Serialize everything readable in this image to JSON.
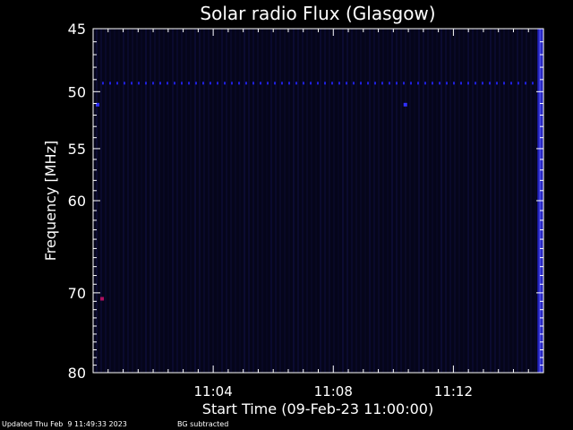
{
  "chart_data": {
    "type": "heatmap",
    "title": "Solar radio Flux (Glasgow)",
    "xlabel": "Start Time (09-Feb-23 11:00:00)",
    "ylabel": "Frequency [MHz]",
    "x_unit": "minutes after 11:00:00",
    "xlim": [
      0,
      15
    ],
    "ylim": [
      45,
      80
    ],
    "y_scale": "log",
    "y_inverted": true,
    "x_ticks": [
      {
        "value": 4,
        "label": "11:04"
      },
      {
        "value": 8,
        "label": "11:08"
      },
      {
        "value": 12,
        "label": "11:12"
      }
    ],
    "y_ticks": [
      {
        "value": 45,
        "label": "45"
      },
      {
        "value": 50,
        "label": "50"
      },
      {
        "value": 55,
        "label": "55"
      },
      {
        "value": 60,
        "label": "60"
      },
      {
        "value": 70,
        "label": "70"
      },
      {
        "value": 80,
        "label": "80"
      }
    ],
    "background_color": "#05051a",
    "interference_frequency_mhz": 49.3,
    "hot_spots": [
      {
        "x": 0.15,
        "y": 51.1,
        "color": "#3030ff"
      },
      {
        "x": 10.4,
        "y": 51.1,
        "color": "#3030ff"
      },
      {
        "x": 0.3,
        "y": 70.7,
        "color": "#b01060"
      }
    ],
    "burst_band": {
      "x_start": 14.8,
      "x_end": 15.0,
      "color": "#2828d8"
    },
    "grid": false,
    "legend": "none"
  },
  "footer": {
    "updated": "Updated Thu Feb  9 11:49:33 2023",
    "note": "BG subtracted"
  },
  "colors": {
    "text": "#ffffff",
    "axes": "#ffffff",
    "interference_line": "#2020e0"
  }
}
